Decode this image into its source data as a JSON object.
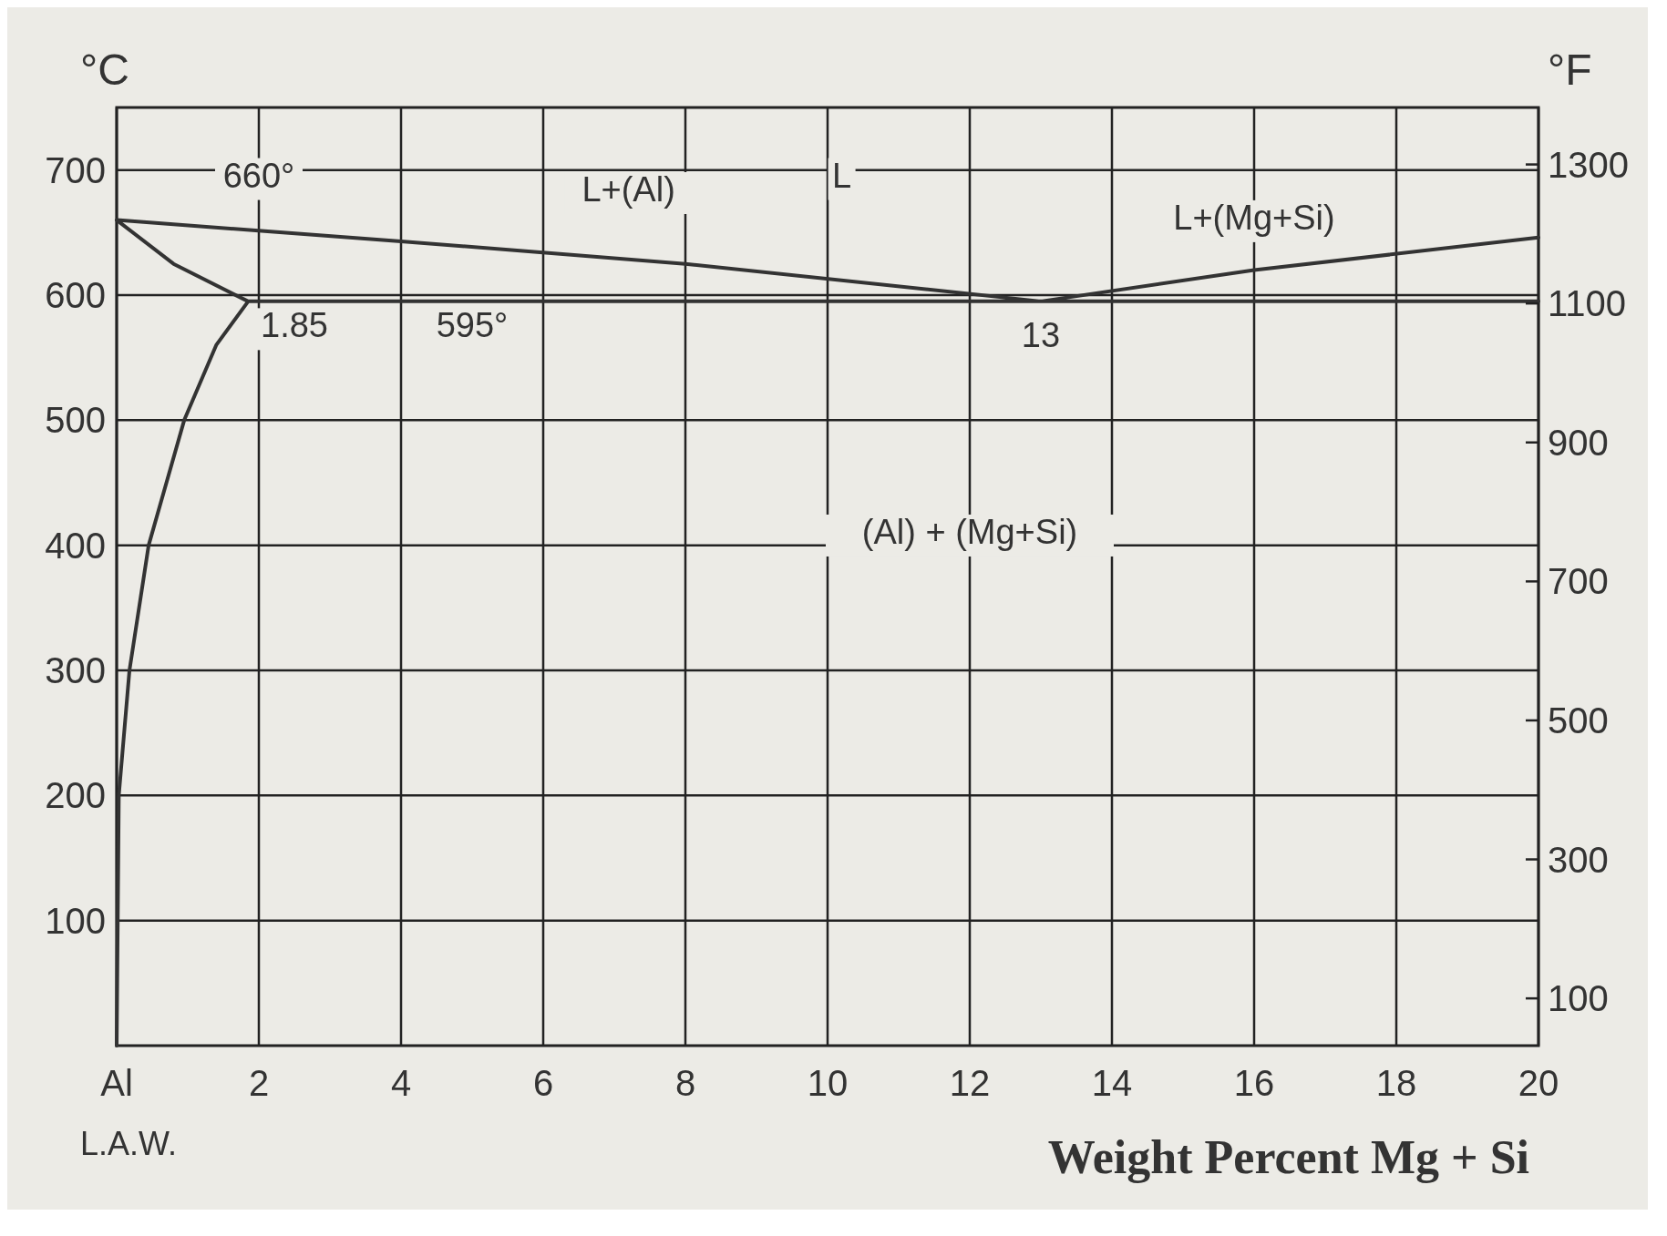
{
  "chart_data": {
    "type": "line",
    "xlabel": "Weight Percent Mg + Si",
    "ylabel": "°C",
    "y2label": "°F",
    "xlim": [
      0,
      20
    ],
    "xticks": [
      {
        "value": 0,
        "label": "Al"
      },
      2,
      4,
      6,
      8,
      10,
      12,
      14,
      16,
      18,
      20
    ],
    "ylim": [
      0,
      750
    ],
    "yticks": [
      100,
      200,
      300,
      400,
      500,
      600,
      700
    ],
    "y2lim": [
      32,
      1382
    ],
    "y2ticks": [
      100,
      300,
      500,
      700,
      900,
      1100,
      1300
    ],
    "grid": true,
    "series": [
      {
        "color": "#333333",
        "x": [
          0,
          4,
          8,
          13,
          16,
          20,
          null,
          1.85,
          20,
          null,
          0,
          0.8,
          1.85,
          1.4,
          0.95,
          0.45,
          0.18,
          0.03,
          0
        ],
        "values": [
          660,
          643,
          625,
          595,
          620,
          646,
          null,
          595,
          595,
          null,
          660,
          625,
          595,
          560,
          500,
          400,
          300,
          200,
          0
        ]
      }
    ],
    "annotations": [
      "660°",
      "L+(Al)",
      "L",
      "L+(Mg+Si)",
      "1.85",
      "595°",
      "13",
      "(Al) + (Mg+Si)",
      "L.A.W."
    ]
  }
}
